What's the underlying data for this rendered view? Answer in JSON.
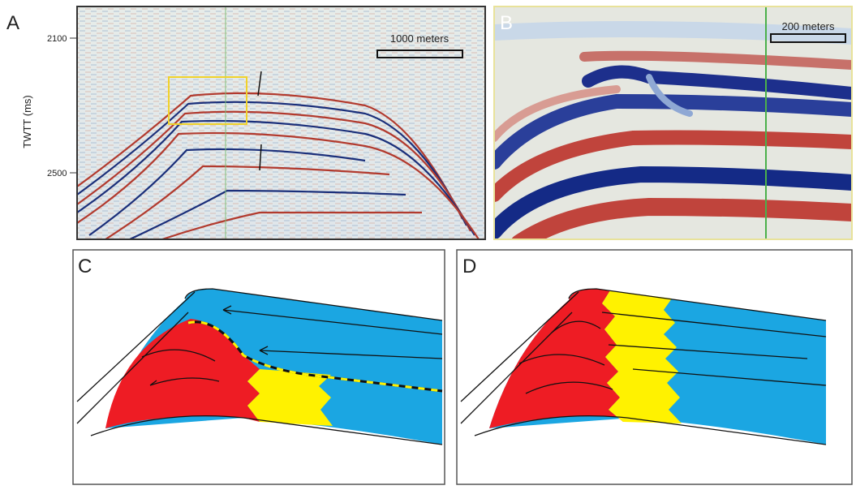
{
  "panels": {
    "a": {
      "label": "A",
      "axis_label": "TWTT (ms)",
      "ticks": [
        "2100",
        "2500"
      ],
      "scale_bar": "1000 meters"
    },
    "b": {
      "label": "B",
      "scale_bar": "200 meters"
    },
    "c": {
      "label": "C"
    },
    "d": {
      "label": "D"
    }
  }
}
